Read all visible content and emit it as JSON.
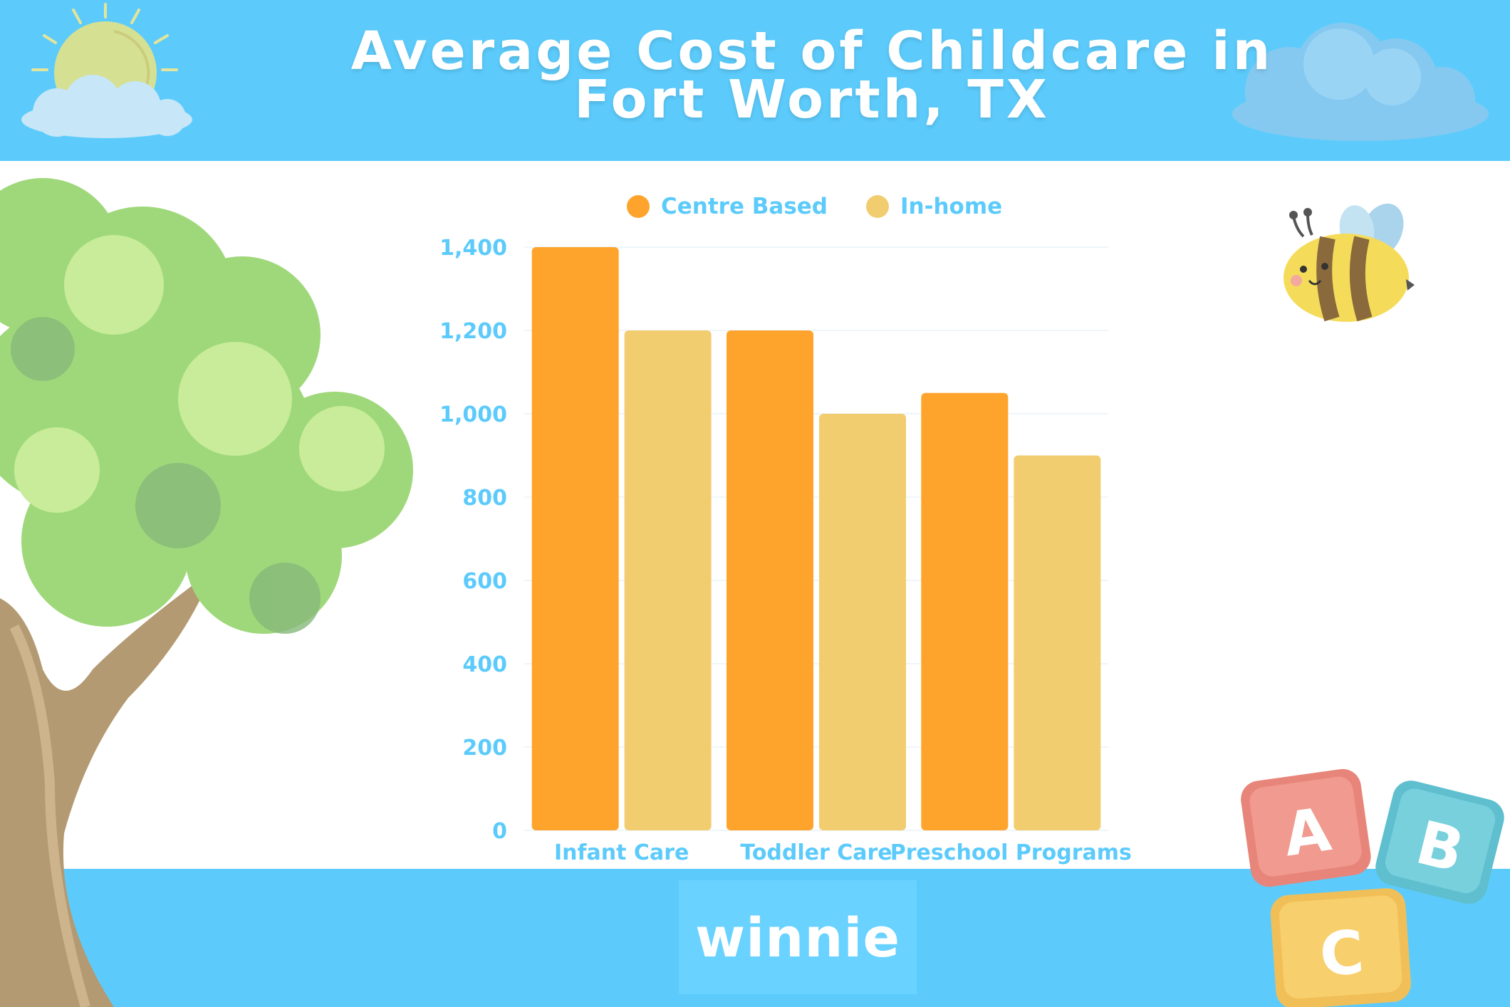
{
  "title_lines": [
    "Average Cost of Childcare in",
    "Fort Worth, TX"
  ],
  "brand": "winnie",
  "blocks": [
    "A",
    "B",
    "C"
  ],
  "colors": {
    "band": "#5ccbfb",
    "centre_based": "#fea42d",
    "in_home": "#f2cd70",
    "axis_text": "#5ccbfb"
  },
  "chart_data": {
    "type": "bar",
    "categories": [
      "Infant Care",
      "Toddler Care",
      "Preschool Programs"
    ],
    "series": [
      {
        "name": "Centre Based",
        "values": [
          1400,
          1200,
          1050
        ],
        "color": "#fea42d"
      },
      {
        "name": "In-home",
        "values": [
          1200,
          1000,
          900
        ],
        "color": "#f2cd70"
      }
    ],
    "yticks": [
      "0",
      "200",
      "400",
      "600",
      "800",
      "1,000",
      "1,200",
      "1,400"
    ],
    "ylim": [
      0,
      1400
    ],
    "grid": true,
    "legend_position": "top-center"
  }
}
